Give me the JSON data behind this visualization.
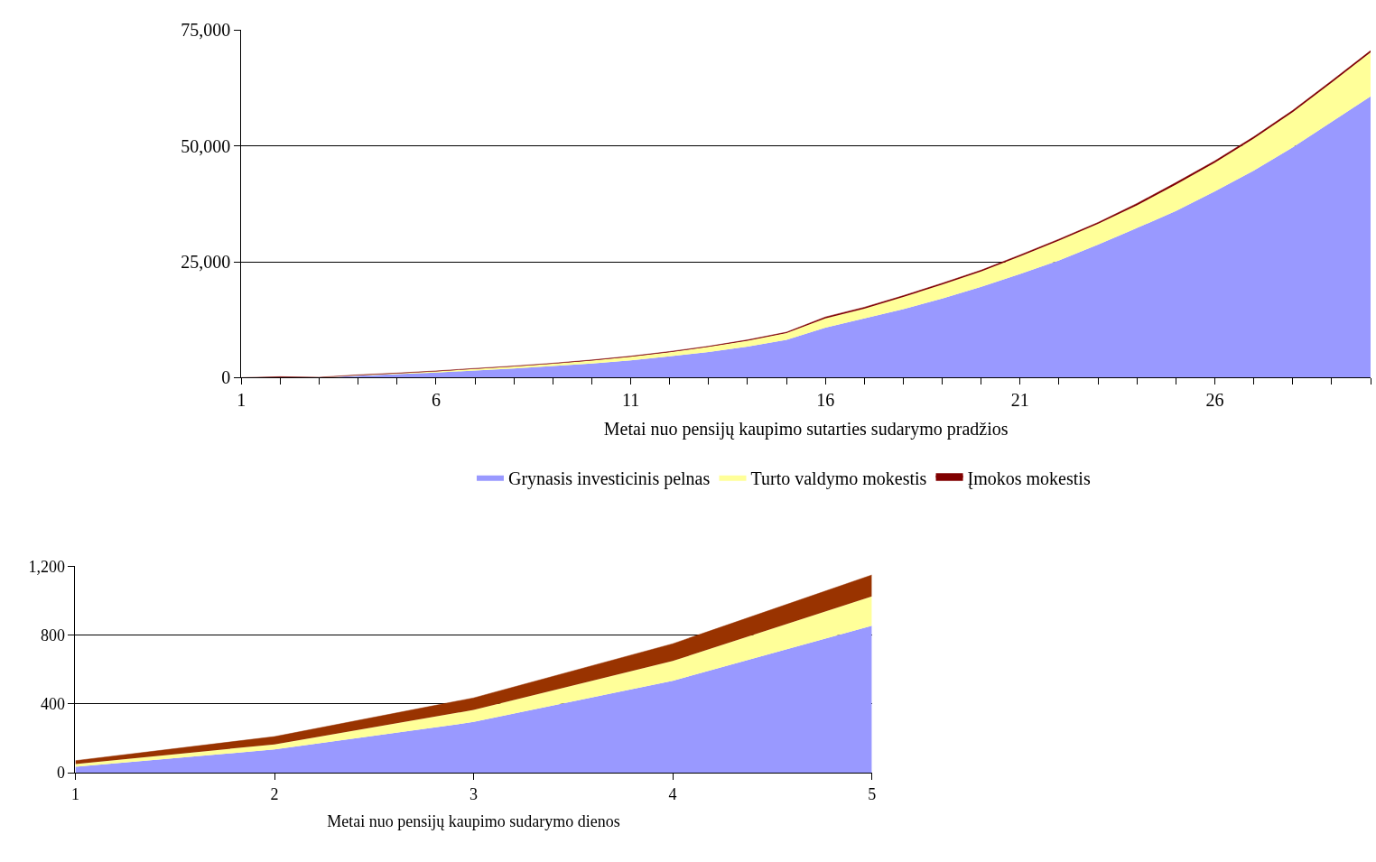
{
  "chart_data": [
    {
      "type": "area",
      "stacked": true,
      "xlabel": "Metai nuo pensijų kaupimo sutarties sudarymo pradžios",
      "x": [
        1,
        2,
        3,
        4,
        5,
        6,
        7,
        8,
        9,
        10,
        11,
        12,
        13,
        14,
        15,
        16,
        17,
        18,
        19,
        20,
        21,
        22,
        23,
        24,
        25,
        26,
        27,
        28,
        29,
        30
      ],
      "xlim": [
        1,
        30
      ],
      "xticks": [
        1,
        {
          "value": 2,
          "label": null
        },
        {
          "value": 3,
          "label": null
        },
        {
          "value": 4,
          "label": null
        },
        {
          "value": 5,
          "label": null
        },
        6,
        {
          "value": 7,
          "label": null
        },
        {
          "value": 8,
          "label": null
        },
        {
          "value": 9,
          "label": null
        },
        {
          "value": 10,
          "label": null
        },
        11,
        {
          "value": 12,
          "label": null
        },
        {
          "value": 13,
          "label": null
        },
        {
          "value": 14,
          "label": null
        },
        {
          "value": 15,
          "label": null
        },
        16,
        {
          "value": 17,
          "label": null
        },
        {
          "value": 18,
          "label": null
        },
        {
          "value": 19,
          "label": null
        },
        {
          "value": 20,
          "label": null
        },
        21,
        {
          "value": 22,
          "label": null
        },
        {
          "value": 23,
          "label": null
        },
        {
          "value": 24,
          "label": null
        },
        {
          "value": 25,
          "label": null
        },
        26,
        {
          "value": 27,
          "label": null
        },
        {
          "value": 28,
          "label": null
        },
        {
          "value": 29,
          "label": null
        },
        {
          "value": 30,
          "label": null
        }
      ],
      "ylim": [
        0,
        75000
      ],
      "yticks": [
        {
          "value": 0,
          "label": "0"
        },
        {
          "value": 25000,
          "label": "25,000"
        },
        {
          "value": 50000,
          "label": "50,000"
        },
        {
          "value": 75000,
          "label": "75,000"
        }
      ],
      "grid": "y",
      "legend": "bottom",
      "series": [
        {
          "name": "Grynasis investicinis pelnas",
          "color": "#9999ff",
          "values": [
            0,
            0,
            0,
            400,
            750,
            1100,
            1550,
            2000,
            2500,
            3050,
            3750,
            4600,
            5550,
            6700,
            8150,
            10800,
            12800,
            14800,
            17100,
            19600,
            22400,
            25300,
            28700,
            32300,
            36000,
            40200,
            44700,
            49700,
            55200,
            60700
          ]
        },
        {
          "name": "Turto valdymo mokestis",
          "color": "#ffff99",
          "values": [
            0,
            0,
            30,
            100,
            140,
            250,
            350,
            410,
            520,
            610,
            740,
            890,
            1080,
            1250,
            1470,
            2000,
            2100,
            2600,
            3000,
            3300,
            3800,
            4300,
            4500,
            4900,
            5700,
            6200,
            6900,
            7600,
            8500,
            9500
          ]
        },
        {
          "name": "Įmokos mokestis",
          "color": "#800000",
          "values": [
            0,
            200,
            50,
            100,
            100,
            100,
            100,
            100,
            100,
            150,
            150,
            150,
            150,
            200,
            200,
            300,
            300,
            300,
            300,
            300,
            300,
            300,
            300,
            400,
            400,
            400,
            400,
            400,
            400,
            400
          ]
        }
      ]
    },
    {
      "type": "area",
      "stacked": true,
      "xlabel": "Metai nuo pensijų kaupimo sudarymo dienos",
      "x": [
        1,
        2,
        3,
        4,
        5
      ],
      "xlim": [
        1,
        5
      ],
      "xticks": [
        1,
        2,
        3,
        4,
        5
      ],
      "ylim": [
        0,
        1200
      ],
      "yticks": [
        {
          "value": 0,
          "label": "0"
        },
        {
          "value": 400,
          "label": "400"
        },
        {
          "value": 800,
          "label": "800"
        },
        {
          "value": 1200,
          "label": "1,200"
        }
      ],
      "grid": "y",
      "series": [
        {
          "color": "#9999ff",
          "values": [
            35,
            135,
            295,
            535,
            855
          ]
        },
        {
          "color": "#ffff99",
          "values": [
            15,
            30,
            70,
            115,
            170
          ]
        },
        {
          "color": "#993300",
          "values": [
            20,
            45,
            70,
            100,
            125
          ]
        }
      ]
    }
  ]
}
